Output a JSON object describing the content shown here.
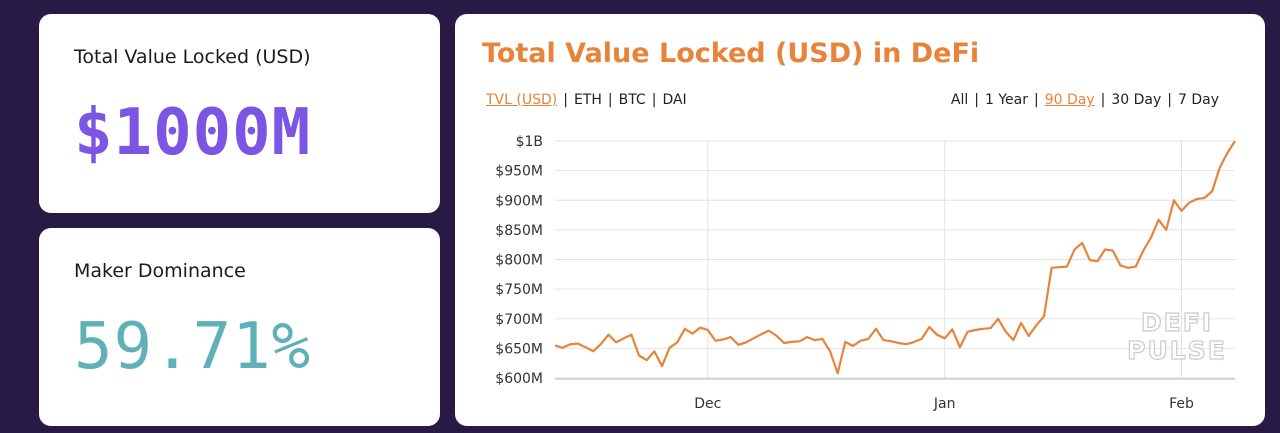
{
  "tvl_card": {
    "label": "Total Value Locked (USD)",
    "value": "$1000M"
  },
  "dominance_card": {
    "label": "Maker Dominance",
    "value": "59.71%"
  },
  "chart_panel": {
    "title": "Total Value Locked (USD) in DeFi",
    "units": [
      {
        "label": "TVL (USD)",
        "active": true
      },
      {
        "label": "ETH",
        "active": false
      },
      {
        "label": "BTC",
        "active": false
      },
      {
        "label": "DAI",
        "active": false
      }
    ],
    "ranges": [
      {
        "label": "All",
        "active": false
      },
      {
        "label": "1 Year",
        "active": false
      },
      {
        "label": "90 Day",
        "active": true
      },
      {
        "label": "30 Day",
        "active": false
      },
      {
        "label": "7 Day",
        "active": false
      }
    ],
    "watermark": [
      "DEFI",
      "PULSE"
    ]
  },
  "colors": {
    "accent": "#e8833a",
    "purple": "#7b55e3",
    "teal": "#5fb0b7",
    "background": "#271b45"
  },
  "chart_data": {
    "type": "line",
    "title": "Total Value Locked (USD) in DeFi",
    "xlabel": "",
    "ylabel": "",
    "ylim": [
      600,
      1000
    ],
    "y_ticks": [
      600,
      650,
      700,
      750,
      800,
      850,
      900,
      950,
      1000
    ],
    "y_tick_labels": [
      "$600M",
      "$650M",
      "$700M",
      "$750M",
      "$800M",
      "$850M",
      "$900M",
      "$950M",
      "$1B"
    ],
    "x_ticks": [
      {
        "date": "2019-12-01",
        "label": "Dec"
      },
      {
        "date": "2020-01-01",
        "label": "Jan"
      },
      {
        "date": "2020-02-01",
        "label": "Feb"
      }
    ],
    "grid": true,
    "series": [
      {
        "unit": "USD millions",
        "points": [
          [
            "2019-11-11",
            655
          ],
          [
            "2019-11-12",
            651
          ],
          [
            "2019-11-13",
            657
          ],
          [
            "2019-11-14",
            658
          ],
          [
            "2019-11-15",
            652
          ],
          [
            "2019-11-16",
            645
          ],
          [
            "2019-11-17",
            657
          ],
          [
            "2019-11-18",
            673
          ],
          [
            "2019-11-19",
            660
          ],
          [
            "2019-11-20",
            667
          ],
          [
            "2019-11-21",
            673
          ],
          [
            "2019-11-22",
            638
          ],
          [
            "2019-11-23",
            630
          ],
          [
            "2019-11-24",
            645
          ],
          [
            "2019-11-25",
            620
          ],
          [
            "2019-11-26",
            651
          ],
          [
            "2019-11-27",
            660
          ],
          [
            "2019-11-28",
            683
          ],
          [
            "2019-11-29",
            675
          ],
          [
            "2019-11-30",
            685
          ],
          [
            "2019-12-01",
            681
          ],
          [
            "2019-12-02",
            663
          ],
          [
            "2019-12-03",
            665
          ],
          [
            "2019-12-04",
            669
          ],
          [
            "2019-12-05",
            656
          ],
          [
            "2019-12-06",
            660
          ],
          [
            "2019-12-07",
            667
          ],
          [
            "2019-12-08",
            674
          ],
          [
            "2019-12-09",
            680
          ],
          [
            "2019-12-10",
            671
          ],
          [
            "2019-12-11",
            659
          ],
          [
            "2019-12-12",
            661
          ],
          [
            "2019-12-13",
            662
          ],
          [
            "2019-12-14",
            669
          ],
          [
            "2019-12-15",
            664
          ],
          [
            "2019-12-16",
            666
          ],
          [
            "2019-12-17",
            645
          ],
          [
            "2019-12-18",
            608
          ],
          [
            "2019-12-19",
            661
          ],
          [
            "2019-12-20",
            654
          ],
          [
            "2019-12-21",
            663
          ],
          [
            "2019-12-22",
            666
          ],
          [
            "2019-12-23",
            683
          ],
          [
            "2019-12-24",
            664
          ],
          [
            "2019-12-25",
            662
          ],
          [
            "2019-12-26",
            659
          ],
          [
            "2019-12-27",
            657
          ],
          [
            "2019-12-28",
            661
          ],
          [
            "2019-12-29",
            666
          ],
          [
            "2019-12-30",
            686
          ],
          [
            "2019-12-31",
            673
          ],
          [
            "2020-01-01",
            667
          ],
          [
            "2020-01-02",
            682
          ],
          [
            "2020-01-03",
            652
          ],
          [
            "2020-01-04",
            678
          ],
          [
            "2020-01-05",
            681
          ],
          [
            "2020-01-06",
            683
          ],
          [
            "2020-01-07",
            684
          ],
          [
            "2020-01-08",
            700
          ],
          [
            "2020-01-09",
            678
          ],
          [
            "2020-01-10",
            664
          ],
          [
            "2020-01-11",
            693
          ],
          [
            "2020-01-12",
            671
          ],
          [
            "2020-01-13",
            689
          ],
          [
            "2020-01-14",
            704
          ],
          [
            "2020-01-15",
            786
          ],
          [
            "2020-01-16",
            787
          ],
          [
            "2020-01-17",
            788
          ],
          [
            "2020-01-18",
            817
          ],
          [
            "2020-01-19",
            828
          ],
          [
            "2020-01-20",
            799
          ],
          [
            "2020-01-21",
            797
          ],
          [
            "2020-01-22",
            817
          ],
          [
            "2020-01-23",
            815
          ],
          [
            "2020-01-24",
            790
          ],
          [
            "2020-01-25",
            786
          ],
          [
            "2020-01-26",
            788
          ],
          [
            "2020-01-27",
            815
          ],
          [
            "2020-01-28",
            837
          ],
          [
            "2020-01-29",
            867
          ],
          [
            "2020-01-30",
            850
          ],
          [
            "2020-01-31",
            900
          ],
          [
            "2020-02-01",
            882
          ],
          [
            "2020-02-02",
            896
          ],
          [
            "2020-02-03",
            902
          ],
          [
            "2020-02-04",
            904
          ],
          [
            "2020-02-05",
            915
          ],
          [
            "2020-02-06",
            955
          ],
          [
            "2020-02-07",
            980
          ],
          [
            "2020-02-08",
            1000
          ]
        ]
      }
    ]
  }
}
